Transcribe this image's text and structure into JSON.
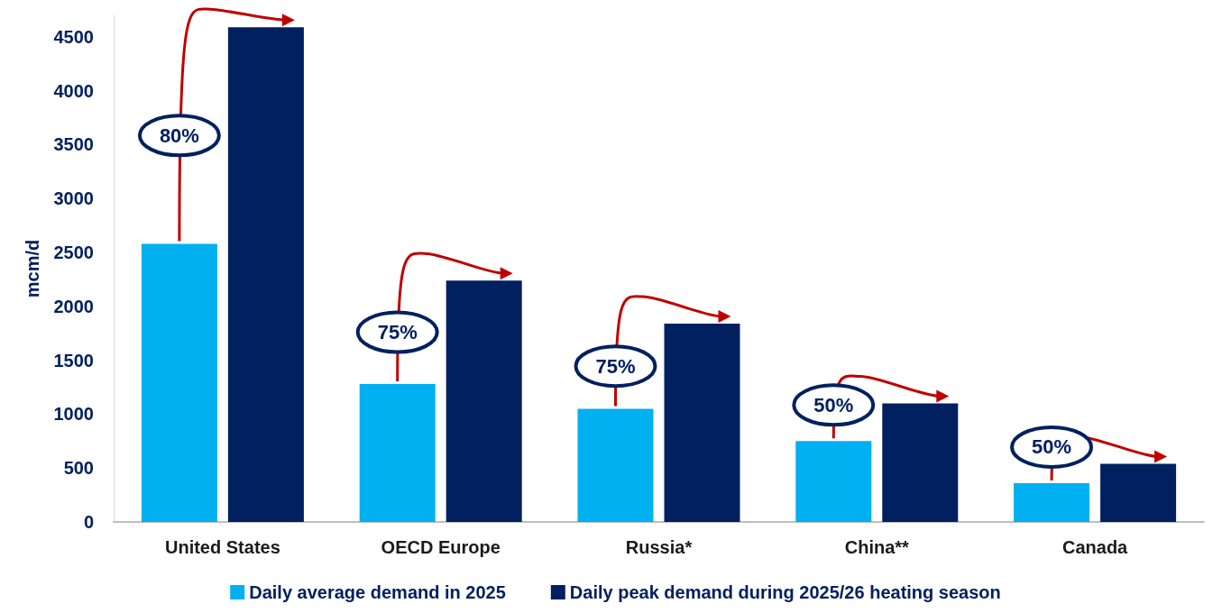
{
  "chart_data": {
    "type": "bar",
    "ylabel": "mcm/d",
    "categories": [
      "United States",
      "OECD Europe",
      "Russia*",
      "China**",
      "Canada"
    ],
    "series": [
      {
        "name": "Daily average demand in 2025",
        "color": "#00b0f0",
        "values": [
          2580,
          1280,
          1050,
          750,
          360
        ]
      },
      {
        "name": "Daily peak demand during 2025/26 heating season",
        "color": "#002060",
        "values": [
          4590,
          2240,
          1840,
          1100,
          540
        ]
      }
    ],
    "annotations": [
      "80%",
      "75%",
      "75%",
      "50%",
      "50%"
    ],
    "ylim": [
      0,
      4700
    ],
    "yticks": [
      0,
      500,
      1000,
      1500,
      2000,
      2500,
      3000,
      3500,
      4000,
      4500
    ],
    "grid": false,
    "legend": "bottom"
  }
}
